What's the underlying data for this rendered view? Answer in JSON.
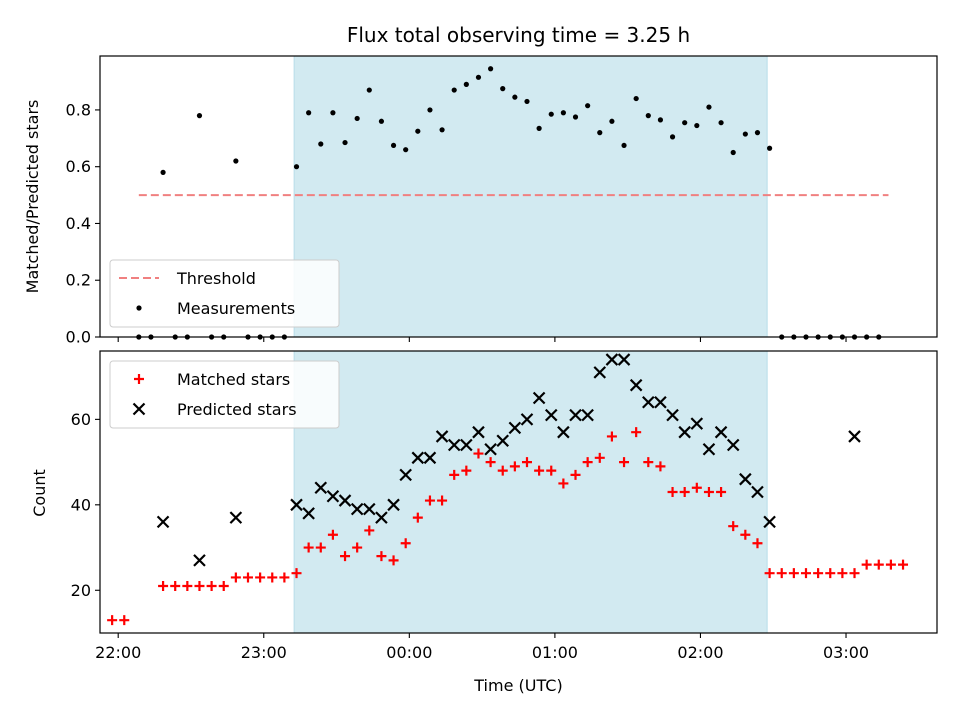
{
  "chart_data": [
    {
      "type": "scatter",
      "title": "Flux total observing time = 3.25 h",
      "xlabel": "",
      "ylabel": "Matched/Predicted stars",
      "x_unit": "minutes after 22:00 UTC",
      "xlim": [
        -7.5,
        337.5
      ],
      "ylim": [
        0,
        0.99
      ],
      "yticks": [
        0.0,
        0.2,
        0.4,
        0.6,
        0.8
      ],
      "ytick_labels": [
        "0.0",
        "0.2",
        "0.4",
        "0.6",
        "0.8"
      ],
      "xticks": [
        0,
        60,
        120,
        180,
        240,
        300
      ],
      "shaded_interval": [
        72.5,
        267.5
      ],
      "shade_color": "#add8e6",
      "grid": false,
      "legend_position": "lower-left",
      "series": [
        {
          "name": "Threshold",
          "style": "dashed-line",
          "color": "#f08080",
          "x": [
            8.5,
            317.5
          ],
          "values": [
            0.5,
            0.5
          ]
        },
        {
          "name": "Measurements",
          "style": "dot",
          "color": "#000000",
          "x": [
            8.5,
            13.5,
            18.5,
            23.5,
            28.5,
            33.5,
            38.5,
            43.5,
            48.5,
            53.5,
            58.5,
            63.5,
            68.5,
            73.5,
            78.5,
            83.5,
            88.5,
            93.5,
            98.5,
            103.5,
            108.5,
            113.5,
            118.5,
            123.5,
            128.5,
            133.5,
            138.5,
            143.5,
            148.5,
            153.5,
            158.5,
            163.5,
            168.5,
            173.5,
            178.5,
            183.5,
            188.5,
            193.5,
            198.5,
            203.5,
            208.5,
            213.5,
            218.5,
            223.5,
            228.5,
            233.5,
            238.5,
            243.5,
            248.5,
            253.5,
            258.5,
            263.5,
            268.5,
            273.5,
            278.5,
            283.5,
            288.5,
            293.5,
            298.5,
            303.5,
            308.5,
            313.5
          ],
          "values": [
            0,
            0,
            0.58,
            0,
            0,
            0.78,
            0,
            0,
            0.62,
            0,
            0,
            0,
            0,
            0.6,
            0.79,
            0.68,
            0.79,
            0.685,
            0.77,
            0.87,
            0.76,
            0.675,
            0.66,
            0.725,
            0.8,
            0.73,
            0.87,
            0.89,
            0.915,
            0.945,
            0.875,
            0.845,
            0.83,
            0.735,
            0.785,
            0.79,
            0.775,
            0.815,
            0.72,
            0.76,
            0.675,
            0.84,
            0.78,
            0.765,
            0.705,
            0.755,
            0.745,
            0.81,
            0.755,
            0.65,
            0.715,
            0.72,
            0.665,
            0,
            0,
            0,
            0,
            0,
            0,
            0,
            0,
            0
          ]
        }
      ]
    },
    {
      "type": "scatter",
      "title": "",
      "xlabel": "Time (UTC)",
      "ylabel": "Count",
      "x_unit": "minutes after 22:00 UTC",
      "xlim": [
        -7.5,
        337.5
      ],
      "ylim": [
        10,
        76
      ],
      "yticks": [
        20,
        40,
        60
      ],
      "ytick_labels": [
        "20",
        "40",
        "60"
      ],
      "xticks": [
        0,
        60,
        120,
        180,
        240,
        300
      ],
      "xtick_labels": [
        "22:00",
        "23:00",
        "00:00",
        "01:00",
        "02:00",
        "03:00"
      ],
      "shaded_interval": [
        72.5,
        267.5
      ],
      "shade_color": "#add8e6",
      "grid": false,
      "legend_position": "upper-left",
      "series": [
        {
          "name": "Matched stars",
          "style": "plus",
          "color": "#ff0000",
          "x": [
            -2.5,
            2.5,
            18.5,
            23.5,
            28.5,
            33.5,
            38.5,
            43.5,
            48.5,
            53.5,
            58.5,
            63.5,
            68.5,
            73.5,
            78.5,
            83.5,
            88.5,
            93.5,
            98.5,
            103.5,
            108.5,
            113.5,
            118.5,
            123.5,
            128.5,
            133.5,
            138.5,
            143.5,
            148.5,
            153.5,
            158.5,
            163.5,
            168.5,
            173.5,
            178.5,
            183.5,
            188.5,
            193.5,
            198.5,
            203.5,
            208.5,
            213.5,
            218.5,
            223.5,
            228.5,
            233.5,
            238.5,
            243.5,
            248.5,
            253.5,
            258.5,
            263.5,
            268.5,
            273.5,
            278.5,
            283.5,
            288.5,
            293.5,
            298.5,
            303.5,
            308.5,
            313.5,
            318.5,
            323.5
          ],
          "values": [
            13,
            13,
            21,
            21,
            21,
            21,
            21,
            21,
            23,
            23,
            23,
            23,
            23,
            24,
            30,
            30,
            33,
            28,
            30,
            34,
            28,
            27,
            31,
            37,
            41,
            41,
            47,
            48,
            52,
            50,
            48,
            49,
            50,
            48,
            48,
            45,
            47,
            50,
            51,
            56,
            50,
            57,
            50,
            49,
            43,
            43,
            44,
            43,
            43,
            35,
            33,
            31,
            24,
            24,
            24,
            24,
            24,
            24,
            24,
            24,
            26,
            26,
            26,
            26
          ]
        },
        {
          "name": "Predicted stars",
          "style": "x",
          "color": "#000000",
          "x": [
            18.5,
            33.5,
            48.5,
            73.5,
            78.5,
            83.5,
            88.5,
            93.5,
            98.5,
            103.5,
            108.5,
            113.5,
            118.5,
            123.5,
            128.5,
            133.5,
            138.5,
            143.5,
            148.5,
            153.5,
            158.5,
            163.5,
            168.5,
            173.5,
            178.5,
            183.5,
            188.5,
            193.5,
            198.5,
            203.5,
            208.5,
            213.5,
            218.5,
            223.5,
            228.5,
            233.5,
            238.5,
            243.5,
            248.5,
            253.5,
            258.5,
            263.5,
            268.5,
            303.5
          ],
          "values": [
            36,
            27,
            37,
            40,
            38,
            44,
            42,
            41,
            39,
            39,
            37,
            40,
            47,
            51,
            51,
            56,
            54,
            54,
            57,
            53,
            55,
            58,
            60,
            65,
            61,
            57,
            61,
            61,
            71,
            74,
            74,
            68,
            64,
            64,
            61,
            57,
            59,
            53,
            57,
            54,
            46,
            43,
            36,
            56
          ]
        }
      ]
    }
  ]
}
